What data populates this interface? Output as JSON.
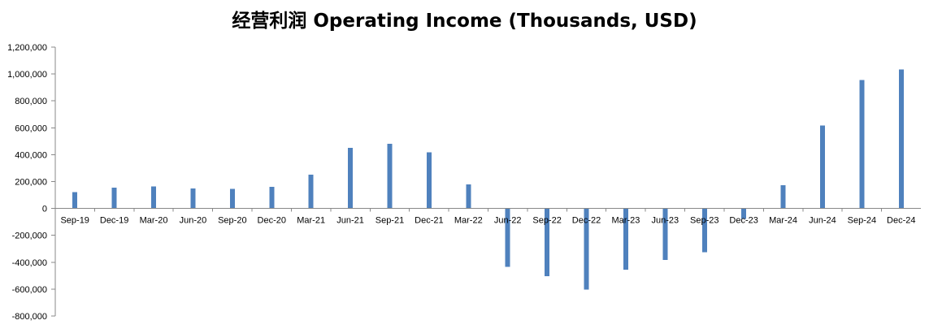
{
  "chart_data": {
    "type": "bar",
    "title": "经营利润 Operating Income (Thousands, USD)",
    "xlabel": "",
    "ylabel": "",
    "categories": [
      "Sep-19",
      "Dec-19",
      "Mar-20",
      "Jun-20",
      "Sep-20",
      "Dec-20",
      "Mar-21",
      "Jun-21",
      "Sep-21",
      "Dec-21",
      "Mar-22",
      "Jun-22",
      "Sep-22",
      "Dec-22",
      "Mar-23",
      "Jun-23",
      "Sep-23",
      "Dec-23",
      "Mar-24",
      "Jun-24",
      "Sep-24",
      "Dec-24"
    ],
    "series": [
      {
        "values": [
          122000,
          155000,
          165000,
          148000,
          146000,
          160000,
          250000,
          450000,
          480000,
          418000,
          178000,
          -435000,
          -505000,
          -605000,
          -455000,
          -382000,
          -325000,
          -78000,
          172000,
          618000,
          955000,
          1035000
        ]
      }
    ],
    "ylim": [
      -800000,
      1200000
    ],
    "yticks": [
      -800000,
      -600000,
      -400000,
      -200000,
      0,
      200000,
      400000,
      600000,
      800000,
      1000000,
      1200000
    ],
    "ytick_labels": [
      "-800,000",
      "-600,000",
      "-400,000",
      "-200,000",
      "0",
      "200,000",
      "400,000",
      "600,000",
      "800,000",
      "1,000,000",
      "1,200,000"
    ],
    "grid": false,
    "legend": "none",
    "bar_color": "#4f81bd"
  }
}
